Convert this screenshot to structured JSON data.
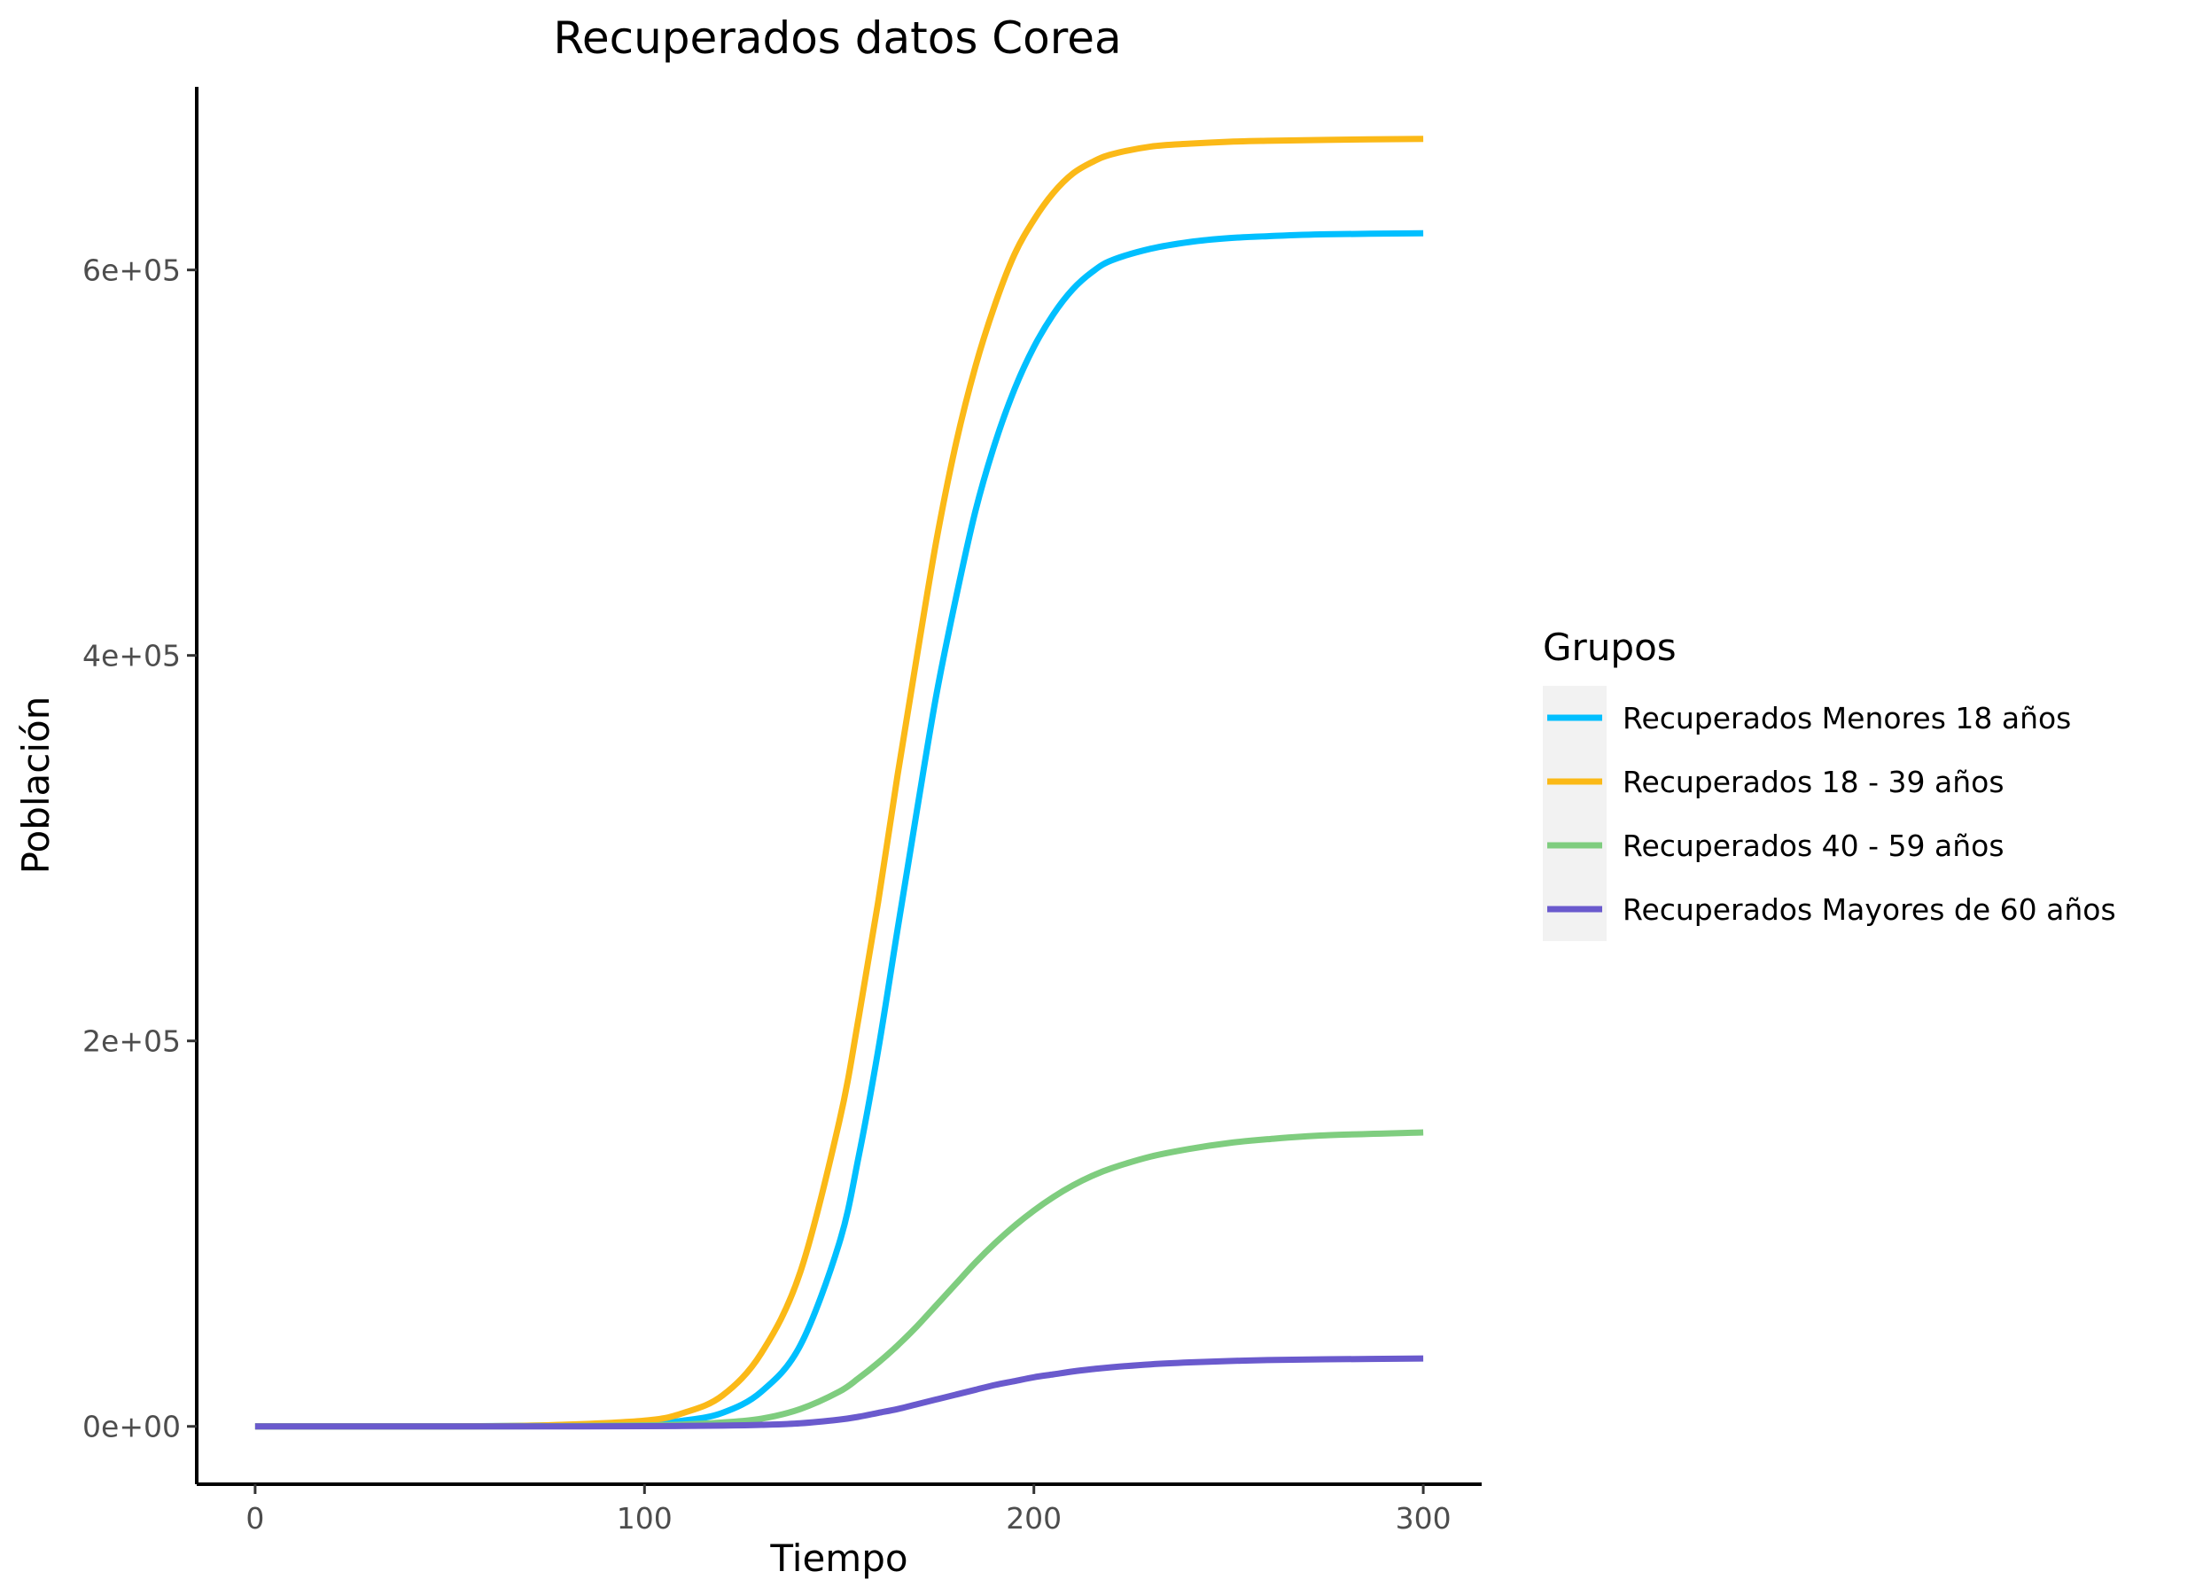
{
  "chart_data": {
    "type": "line",
    "title": "Recuperados datos Corea",
    "xlabel": "Tiempo",
    "ylabel": "Población",
    "xlim": [
      -15,
      315
    ],
    "ylim": [
      -30000,
      695000
    ],
    "x_ticks": [
      0,
      100,
      200,
      300
    ],
    "x_tick_labels": [
      "0",
      "100",
      "200",
      "300"
    ],
    "y_ticks": [
      0,
      200000,
      400000,
      600000
    ],
    "y_tick_labels": [
      "0e+00",
      "2e+05",
      "4e+05",
      "6e+05"
    ],
    "grid": false,
    "legend": {
      "title": "Grupos",
      "position": "right"
    },
    "x": [
      0,
      25,
      50,
      75,
      100,
      110,
      120,
      130,
      140,
      150,
      155,
      160,
      165,
      170,
      175,
      180,
      185,
      190,
      195,
      200,
      205,
      210,
      215,
      220,
      230,
      240,
      250,
      260,
      275,
      300
    ],
    "series": [
      {
        "name": "Recuperados Menores 18 años",
        "color": "#00BFFF",
        "values": [
          0,
          0,
          0,
          500,
          1500,
          3000,
          7000,
          18000,
          42000,
          95000,
          140000,
          195000,
          258000,
          320000,
          380000,
          430000,
          475000,
          510000,
          538000,
          560000,
          577000,
          590000,
          599000,
          605000,
          611000,
          614500,
          616500,
          617500,
          618500,
          619000
        ]
      },
      {
        "name": "Recuperados 18 - 39 años",
        "color": "#FBB917",
        "values": [
          0,
          0,
          0,
          600,
          3000,
          7000,
          16000,
          38000,
          80000,
          158000,
          212000,
          272000,
          338000,
          400000,
          460000,
          510000,
          550000,
          582000,
          608000,
          626000,
          640000,
          650000,
          656000,
          660000,
          664000,
          665500,
          666500,
          667000,
          667500,
          668000
        ]
      },
      {
        "name": "Recuperados 40 - 59 años",
        "color": "#7FCD7F",
        "values": [
          0,
          0,
          0,
          100,
          500,
          1000,
          2000,
          4000,
          9000,
          18000,
          25000,
          33000,
          42000,
          52000,
          63000,
          74000,
          85000,
          95000,
          104000,
          112000,
          119000,
          125000,
          130000,
          134000,
          140000,
          144000,
          147000,
          149000,
          151000,
          152500
        ]
      },
      {
        "name": "Recuperados Mayores de 60 años",
        "color": "#6A5ACD",
        "values": [
          0,
          0,
          0,
          0,
          100,
          200,
          400,
          800,
          1600,
          3500,
          5000,
          7000,
          9000,
          11500,
          14000,
          16500,
          19000,
          21500,
          23500,
          25500,
          27000,
          28500,
          29700,
          30700,
          32200,
          33200,
          33900,
          34400,
          34800,
          35200
        ]
      }
    ]
  }
}
